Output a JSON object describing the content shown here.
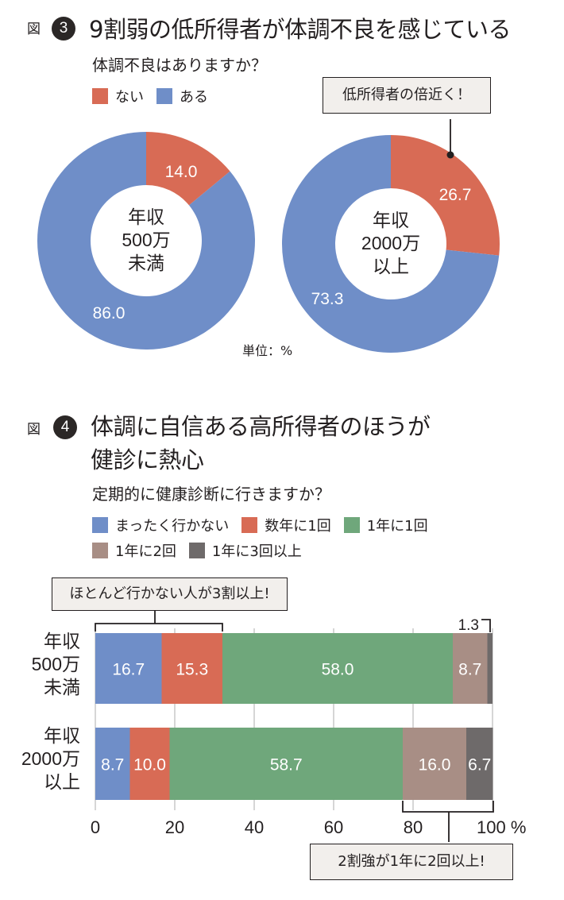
{
  "colors": {
    "red": "#d86b55",
    "blue": "#6f8ec8",
    "green": "#6fa77b",
    "tan": "#a88e85",
    "gray": "#6e6a6a"
  },
  "figure3": {
    "fig_label": "図",
    "number": "3",
    "title": "9割弱の低所得者が体調不良を感じている",
    "subtitle": "体調不良はありますか？",
    "legend": [
      {
        "label": "ない",
        "color": "#d86b55"
      },
      {
        "label": "ある",
        "color": "#6f8ec8"
      }
    ],
    "callout": "低所得者の倍近く！",
    "unit": "単位：%"
  },
  "figure4": {
    "fig_label": "図",
    "number": "4",
    "title_line1": "体調に自信ある高所得者のほうが",
    "title_line2": "健診に熱心",
    "subtitle": "定期的に健康診断に行きますか？",
    "legend": [
      {
        "label": "まったく行かない",
        "color": "#6f8ec8"
      },
      {
        "label": "数年に1回",
        "color": "#d86b55"
      },
      {
        "label": "1年に1回",
        "color": "#6fa77b"
      },
      {
        "label": "1年に2回",
        "color": "#a88e85"
      },
      {
        "label": "1年に3回以上",
        "color": "#6e6a6a"
      }
    ],
    "callout_top": "ほとんど行かない人が3割以上!",
    "callout_bottom": "2割強が1年に2回以上!",
    "row_labels": [
      [
        "年収",
        "500万",
        "未満"
      ],
      [
        "年収",
        "2000万",
        "以上"
      ]
    ]
  },
  "chart_data": [
    {
      "type": "pie",
      "style": "donut",
      "title": "9割弱の低所得者が体調不良を感じている",
      "subtitle": "体調不良はありますか？",
      "center_label": [
        "年収",
        "500万",
        "未満"
      ],
      "labels": [
        "ない",
        "ある"
      ],
      "values": [
        14.0,
        86.0
      ],
      "value_labels": [
        "14.0",
        "86.0"
      ],
      "colors": [
        "#d86b55",
        "#6f8ec8"
      ],
      "unit": "%"
    },
    {
      "type": "pie",
      "style": "donut",
      "title": "9割弱の低所得者が体調不良を感じている",
      "subtitle": "体調不良はありますか？",
      "center_label": [
        "年収",
        "2000万",
        "以上"
      ],
      "labels": [
        "ない",
        "ある"
      ],
      "values": [
        26.7,
        73.3
      ],
      "value_labels": [
        "26.7",
        "73.3"
      ],
      "colors": [
        "#d86b55",
        "#6f8ec8"
      ],
      "unit": "%"
    },
    {
      "type": "bar",
      "orientation": "horizontal",
      "stacked": true,
      "title": "体調に自信ある高所得者のほうが健診に熱心",
      "subtitle": "定期的に健康診断に行きますか？",
      "categories": [
        "年収500万未満",
        "年収2000万以上"
      ],
      "series": [
        {
          "name": "まったく行かない",
          "color": "#6f8ec8",
          "values": [
            16.7,
            8.7
          ]
        },
        {
          "name": "数年に1回",
          "color": "#d86b55",
          "values": [
            15.3,
            10.0
          ]
        },
        {
          "name": "1年に1回",
          "color": "#6fa77b",
          "values": [
            58.0,
            58.7
          ]
        },
        {
          "name": "1年に2回",
          "color": "#a88e85",
          "values": [
            8.7,
            16.0
          ]
        },
        {
          "name": "1年に3回以上",
          "color": "#6e6a6a",
          "values": [
            1.3,
            6.7
          ]
        }
      ],
      "xlim": [
        0,
        100
      ],
      "xticks": [
        0,
        20,
        40,
        60,
        80,
        100
      ],
      "xtick_labels": [
        "0",
        "20",
        "40",
        "60",
        "80",
        "100 %"
      ],
      "grid": true,
      "legend": "top-left"
    }
  ]
}
